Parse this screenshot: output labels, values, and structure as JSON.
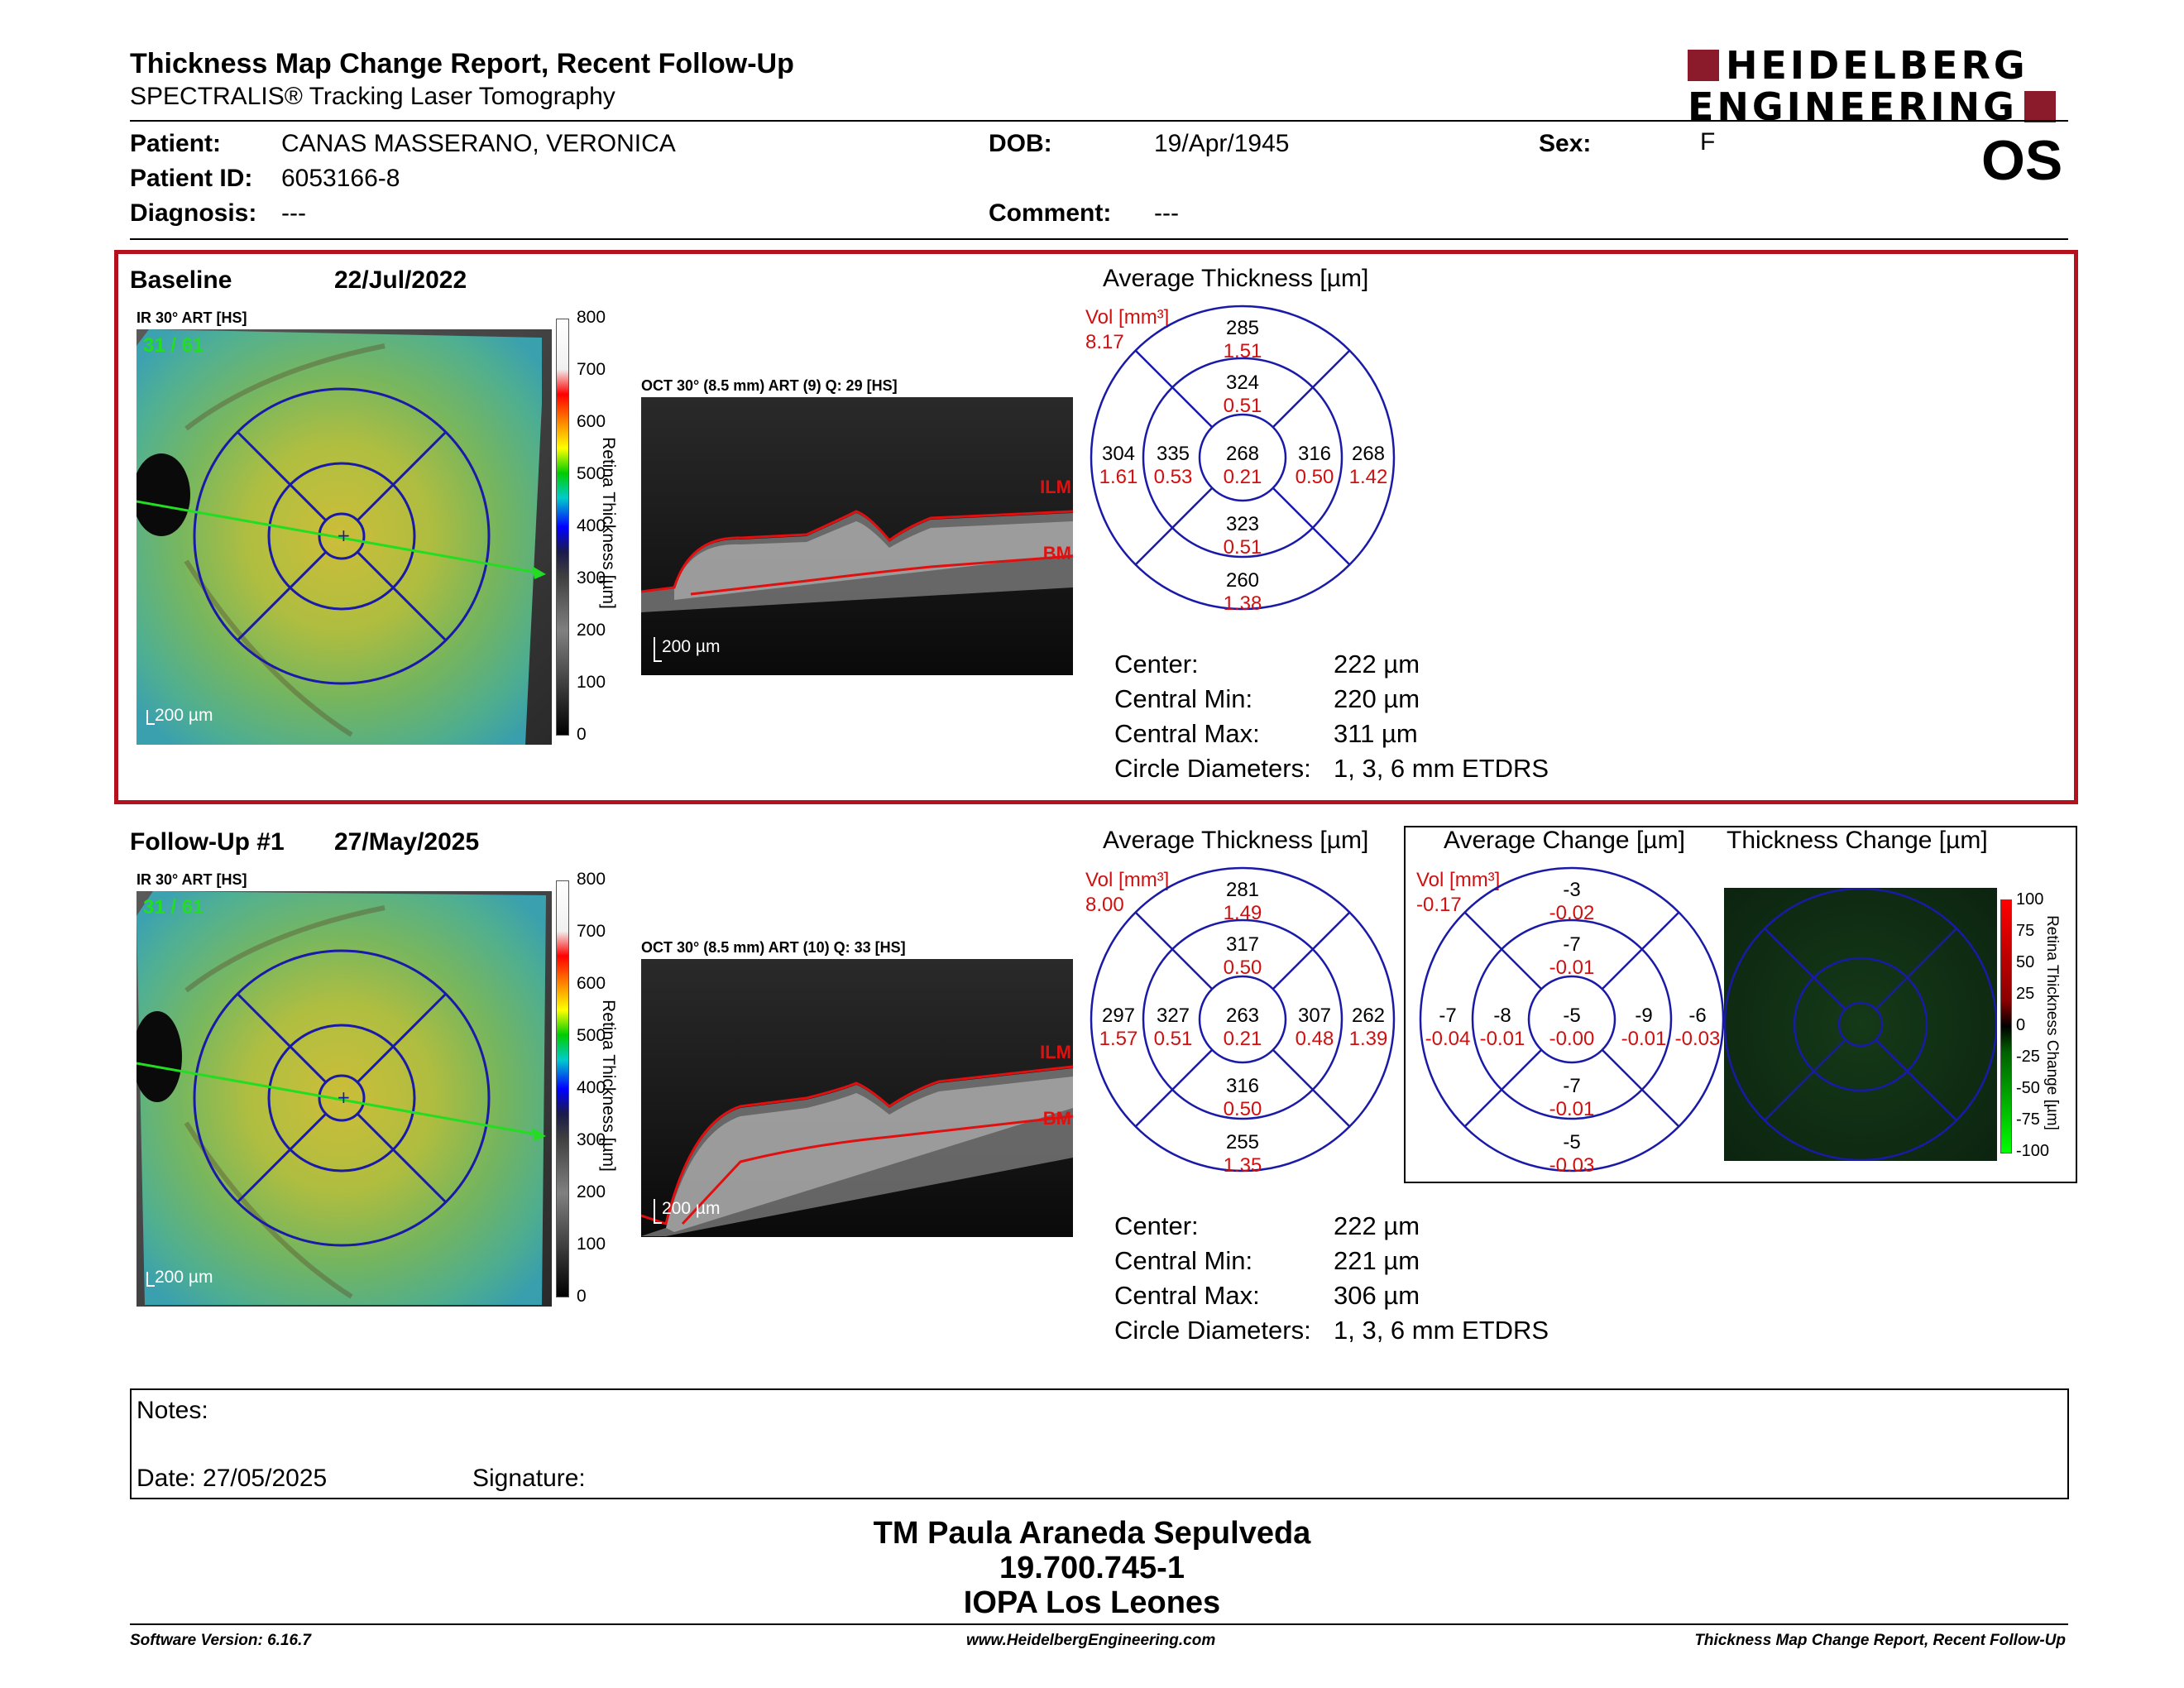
{
  "header": {
    "title": "Thickness Map Change Report, Recent Follow-Up",
    "subtitle": "SPECTRALIS® Tracking Laser Tomography",
    "logo_line1": "HEIDELBERG",
    "logo_line2": "ENGINEERING",
    "eye": "OS"
  },
  "patient": {
    "patient_label": "Patient:",
    "patient_name": "CANAS MASSERANO, VERONICA",
    "id_label": "Patient ID:",
    "id": "6053166-8",
    "diagnosis_label": "Diagnosis:",
    "diagnosis": "---",
    "dob_label": "DOB:",
    "dob": "19/Apr/1945",
    "comment_label": "Comment:",
    "comment": "---",
    "sex_label": "Sex:",
    "sex": "F"
  },
  "baseline": {
    "label": "Baseline",
    "date": "22/Jul/2022",
    "ir_caption": "IR 30° ART [HS]",
    "ir_frames": "31 / 61",
    "scale": "200 µm",
    "colorbar_ticks": [
      "800",
      "700",
      "600",
      "500",
      "400",
      "300",
      "200",
      "100",
      "0"
    ],
    "colorbar_label": "Retina Thickness [µm]",
    "oct_caption": "OCT 30° (8.5 mm) ART (9) Q: 29 [HS]",
    "oct_scale": "200 µm",
    "ilm": "ILM",
    "bm": "BM",
    "avg_title": "Average Thickness [µm]",
    "vol_label": "Vol [mm³]",
    "vol_total": "8.17",
    "grid": {
      "center": [
        "268",
        "0.21"
      ],
      "inner_top": [
        "324",
        "0.51"
      ],
      "inner_bottom": [
        "323",
        "0.51"
      ],
      "inner_left": [
        "335",
        "0.53"
      ],
      "inner_right": [
        "316",
        "0.50"
      ],
      "outer_top": [
        "285",
        "1.51"
      ],
      "outer_bottom": [
        "260",
        "1.38"
      ],
      "outer_left": [
        "304",
        "1.61"
      ],
      "outer_right": [
        "268",
        "1.42"
      ]
    },
    "stats": [
      {
        "k": "Center:",
        "v": "222 µm"
      },
      {
        "k": "Central Min:",
        "v": "220 µm"
      },
      {
        "k": "Central Max:",
        "v": "311 µm"
      },
      {
        "k": "Circle Diameters:",
        "v": "1, 3, 6 mm ETDRS"
      }
    ]
  },
  "followup": {
    "label": "Follow-Up #1",
    "date": "27/May/2025",
    "ir_caption": "IR 30° ART [HS]",
    "ir_frames": "31 / 61",
    "scale": "200 µm",
    "colorbar_ticks": [
      "800",
      "700",
      "600",
      "500",
      "400",
      "300",
      "200",
      "100",
      "0"
    ],
    "colorbar_label": "Retina Thickness [µm]",
    "oct_caption": "OCT 30° (8.5 mm) ART (10) Q: 33 [HS]",
    "oct_scale": "200 µm",
    "ilm": "ILM",
    "bm": "BM",
    "avg_title": "Average Thickness [µm]",
    "vol_label": "Vol [mm³]",
    "vol_total": "8.00",
    "grid": {
      "center": [
        "263",
        "0.21"
      ],
      "inner_top": [
        "317",
        "0.50"
      ],
      "inner_bottom": [
        "316",
        "0.50"
      ],
      "inner_left": [
        "327",
        "0.51"
      ],
      "inner_right": [
        "307",
        "0.48"
      ],
      "outer_top": [
        "281",
        "1.49"
      ],
      "outer_bottom": [
        "255",
        "1.35"
      ],
      "outer_left": [
        "297",
        "1.57"
      ],
      "outer_right": [
        "262",
        "1.39"
      ]
    },
    "stats": [
      {
        "k": "Center:",
        "v": "222 µm"
      },
      {
        "k": "Central Min:",
        "v": "221 µm"
      },
      {
        "k": "Central Max:",
        "v": "306 µm"
      },
      {
        "k": "Circle Diameters:",
        "v": "1, 3, 6 mm ETDRS"
      }
    ],
    "change_title": "Average Change [µm]",
    "change_vol_label": "Vol [mm³]",
    "change_vol_total": "-0.17",
    "change_grid": {
      "center": [
        "-5",
        "-0.00"
      ],
      "inner_top": [
        "-7",
        "-0.01"
      ],
      "inner_bottom": [
        "-7",
        "-0.01"
      ],
      "inner_left": [
        "-8",
        "-0.01"
      ],
      "inner_right": [
        "-9",
        "-0.01"
      ],
      "outer_top": [
        "-3",
        "-0.02"
      ],
      "outer_bottom": [
        "-5",
        "-0.03"
      ],
      "outer_left": [
        "-7",
        "-0.04"
      ],
      "outer_right": [
        "-6",
        "-0.03"
      ]
    },
    "change_map_title": "Thickness Change [µm]",
    "change_ticks": [
      "100",
      "75",
      "50",
      "25",
      "0",
      "-25",
      "-50",
      "-75",
      "-100"
    ],
    "change_bar_label": "Retina Thickness Change [µm]"
  },
  "notes": {
    "notes_label": "Notes:",
    "date_label": "Date: 27/05/2025",
    "signature_label": "Signature:"
  },
  "operator": {
    "name": "TM Paula Araneda Sepulveda",
    "id": "19.700.745-1",
    "institution": "IOPA Los Leones"
  },
  "footer": {
    "version": "Software Version: 6.16.7",
    "website": "www.HeidelbergEngineering.com",
    "report": "Thickness Map Change Report, Recent Follow-Up"
  },
  "colors": {
    "accent_red": "#b2111d",
    "grid_blue": "#1a1aa8",
    "value_red": "#d01010"
  }
}
